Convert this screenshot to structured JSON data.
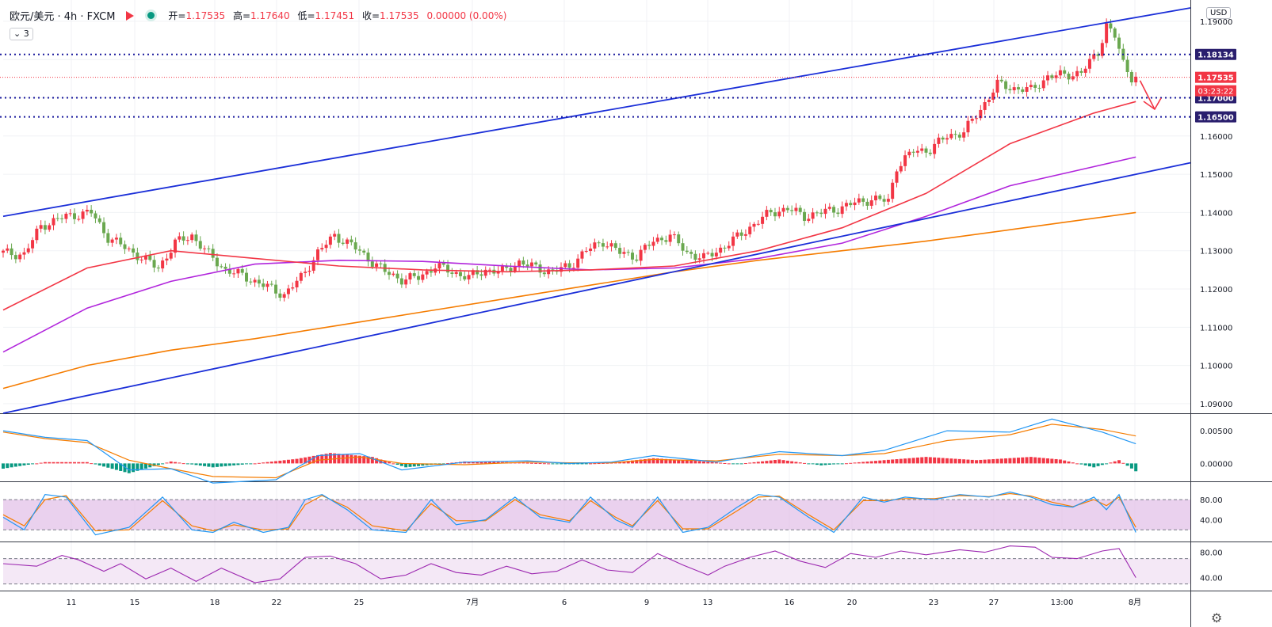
{
  "header": {
    "title": "欧元/美元 · 4h · FXCM",
    "ohlc": [
      {
        "label": "开=",
        "value": "1.17535"
      },
      {
        "label": "高=",
        "value": "1.17640"
      },
      {
        "label": "低=",
        "value": "1.17451"
      },
      {
        "label": "收=",
        "value": "1.17535"
      },
      {
        "label": "",
        "value": "0.00000 (0.00%)"
      }
    ],
    "indicator_count": "3",
    "currency": "USD"
  },
  "colors": {
    "up": "#f23645",
    "down": "#6aa84f",
    "channel": "#1b2fd8",
    "ma_fast": "#f23645",
    "ma_mid": "#b125dc",
    "ma_slow": "#f57c00",
    "level_line": "#1a1a9e",
    "macd_fast": "#2196f3",
    "macd_slow": "#f57c00",
    "hist_pos": "#f23645",
    "hist_neg": "#089981",
    "stoch_band": "#e1bee7",
    "rsi_line": "#9c27b0"
  },
  "chart_data": {
    "type": "candlestick",
    "x_tick_labels": [
      "11",
      "15",
      "18",
      "22",
      "25",
      "7月",
      "6",
      "9",
      "13",
      "16",
      "20",
      "23",
      "27",
      "13:00",
      "8月"
    ],
    "y_tick_labels": [
      "1.19000",
      "1.18000",
      "1.17000",
      "1.16000",
      "1.15000",
      "1.14000",
      "1.13000",
      "1.12000",
      "1.11000",
      "1.10000",
      "1.09000"
    ],
    "ylim": [
      1.0875,
      1.1935
    ],
    "anchors": [
      [
        0,
        1.1295
      ],
      [
        6,
        1.129
      ],
      [
        10,
        1.1365
      ],
      [
        16,
        1.139
      ],
      [
        22,
        1.14
      ],
      [
        26,
        1.1335
      ],
      [
        32,
        1.1295
      ],
      [
        38,
        1.1255
      ],
      [
        42,
        1.132
      ],
      [
        46,
        1.134
      ],
      [
        50,
        1.129
      ],
      [
        54,
        1.125
      ],
      [
        58,
        1.1235
      ],
      [
        62,
        1.1215
      ],
      [
        68,
        1.1185
      ],
      [
        72,
        1.123
      ],
      [
        76,
        1.1295
      ],
      [
        80,
        1.134
      ],
      [
        84,
        1.1315
      ],
      [
        88,
        1.128
      ],
      [
        92,
        1.1245
      ],
      [
        96,
        1.1225
      ],
      [
        100,
        1.123
      ],
      [
        104,
        1.126
      ],
      [
        108,
        1.1245
      ],
      [
        112,
        1.123
      ],
      [
        116,
        1.125
      ],
      [
        120,
        1.1245
      ],
      [
        124,
        1.127
      ],
      [
        128,
        1.1255
      ],
      [
        132,
        1.1245
      ],
      [
        136,
        1.126
      ],
      [
        140,
        1.13
      ],
      [
        144,
        1.1325
      ],
      [
        148,
        1.1295
      ],
      [
        152,
        1.1285
      ],
      [
        156,
        1.1325
      ],
      [
        160,
        1.134
      ],
      [
        164,
        1.1295
      ],
      [
        168,
        1.128
      ],
      [
        172,
        1.1305
      ],
      [
        176,
        1.1335
      ],
      [
        180,
        1.137
      ],
      [
        184,
        1.14
      ],
      [
        188,
        1.141
      ],
      [
        192,
        1.139
      ],
      [
        196,
        1.14
      ],
      [
        200,
        1.141
      ],
      [
        204,
        1.1425
      ],
      [
        208,
        1.1435
      ],
      [
        212,
        1.143
      ],
      [
        214,
        1.152
      ],
      [
        218,
        1.156
      ],
      [
        222,
        1.1565
      ],
      [
        226,
        1.16
      ],
      [
        230,
        1.161
      ],
      [
        234,
        1.167
      ],
      [
        238,
        1.1735
      ],
      [
        242,
        1.1725
      ],
      [
        246,
        1.172
      ],
      [
        250,
        1.1755
      ],
      [
        254,
        1.176
      ],
      [
        258,
        1.1765
      ],
      [
        262,
        1.182
      ],
      [
        264,
        1.189
      ],
      [
        266,
        1.186
      ],
      [
        268,
        1.179
      ],
      [
        270,
        1.1755
      ]
    ],
    "ma_fast": [
      [
        0,
        1.1145
      ],
      [
        20,
        1.1255
      ],
      [
        40,
        1.13
      ],
      [
        60,
        1.128
      ],
      [
        80,
        1.126
      ],
      [
        100,
        1.125
      ],
      [
        120,
        1.1245
      ],
      [
        140,
        1.125
      ],
      [
        160,
        1.126
      ],
      [
        180,
        1.13
      ],
      [
        200,
        1.136
      ],
      [
        220,
        1.145
      ],
      [
        240,
        1.158
      ],
      [
        260,
        1.166
      ],
      [
        270,
        1.169
      ]
    ],
    "ma_mid": [
      [
        0,
        1.1035
      ],
      [
        20,
        1.115
      ],
      [
        40,
        1.122
      ],
      [
        60,
        1.1265
      ],
      [
        80,
        1.1275
      ],
      [
        100,
        1.1272
      ],
      [
        120,
        1.126
      ],
      [
        140,
        1.125
      ],
      [
        160,
        1.1255
      ],
      [
        180,
        1.128
      ],
      [
        200,
        1.132
      ],
      [
        220,
        1.139
      ],
      [
        240,
        1.147
      ],
      [
        260,
        1.152
      ],
      [
        270,
        1.1545
      ]
    ],
    "ma_slow": [
      [
        0,
        1.094
      ],
      [
        20,
        1.1
      ],
      [
        40,
        1.104
      ],
      [
        60,
        1.107
      ],
      [
        80,
        1.1105
      ],
      [
        100,
        1.114
      ],
      [
        120,
        1.1175
      ],
      [
        140,
        1.121
      ],
      [
        160,
        1.1245
      ],
      [
        180,
        1.1275
      ],
      [
        200,
        1.13
      ],
      [
        220,
        1.1325
      ],
      [
        240,
        1.1355
      ],
      [
        260,
        1.1385
      ],
      [
        270,
        1.14
      ]
    ],
    "channel_upper": [
      [
        0,
        1.139
      ],
      [
        283,
        1.1935
      ]
    ],
    "channel_lower": [
      [
        0,
        1.0875
      ],
      [
        283,
        1.153
      ]
    ],
    "levels": [
      {
        "price": 1.18134,
        "label": "1.18134",
        "style": "dotted"
      },
      {
        "price": 1.17,
        "label": "1.17000",
        "style": "dotted"
      },
      {
        "price": 1.165,
        "label": "1.16500",
        "style": "dotted"
      }
    ],
    "current": {
      "price": 1.17535,
      "label": "1.17535",
      "countdown": "03:23:22"
    },
    "arrow": [
      [
        271,
        1.1745
      ],
      [
        276,
        1.167
      ]
    ],
    "macd": {
      "y_tick_labels": [
        "0.00500",
        "0.00000"
      ],
      "ylim": [
        -0.0025,
        0.0072
      ],
      "fast": [
        [
          0,
          0.005
        ],
        [
          10,
          0.004
        ],
        [
          20,
          0.0035
        ],
        [
          30,
          -0.001
        ],
        [
          40,
          -0.0008
        ],
        [
          50,
          -0.003
        ],
        [
          65,
          -0.0025
        ],
        [
          75,
          0.0012
        ],
        [
          85,
          0.0015
        ],
        [
          95,
          -0.001
        ],
        [
          110,
          0.0002
        ],
        [
          125,
          0.0004
        ],
        [
          135,
          0.0
        ],
        [
          145,
          0.0002
        ],
        [
          155,
          0.0012
        ],
        [
          170,
          0.0002
        ],
        [
          185,
          0.0018
        ],
        [
          200,
          0.0012
        ],
        [
          210,
          0.002
        ],
        [
          225,
          0.005
        ],
        [
          240,
          0.0048
        ],
        [
          250,
          0.0068
        ],
        [
          262,
          0.0048
        ],
        [
          270,
          0.003
        ]
      ],
      "slow": [
        [
          0,
          0.0048
        ],
        [
          10,
          0.0038
        ],
        [
          20,
          0.0032
        ],
        [
          30,
          0.0005
        ],
        [
          40,
          -0.0008
        ],
        [
          50,
          -0.002
        ],
        [
          65,
          -0.0022
        ],
        [
          75,
          0.0005
        ],
        [
          85,
          0.001
        ],
        [
          95,
          0.0
        ],
        [
          110,
          -0.0002
        ],
        [
          125,
          0.0002
        ],
        [
          135,
          0.0001
        ],
        [
          145,
          0.0001
        ],
        [
          155,
          0.0006
        ],
        [
          170,
          0.0004
        ],
        [
          185,
          0.0014
        ],
        [
          200,
          0.0012
        ],
        [
          210,
          0.0015
        ],
        [
          225,
          0.0035
        ],
        [
          240,
          0.0044
        ],
        [
          250,
          0.006
        ],
        [
          262,
          0.0052
        ],
        [
          270,
          0.0042
        ]
      ],
      "hist": [
        [
          0,
          -0.0008
        ],
        [
          10,
          0.0002
        ],
        [
          20,
          0.0002
        ],
        [
          30,
          -0.0015
        ],
        [
          40,
          0.0003
        ],
        [
          50,
          -0.0006
        ],
        [
          60,
          0.0
        ],
        [
          70,
          0.0007
        ],
        [
          78,
          0.0016
        ],
        [
          88,
          0.001
        ],
        [
          96,
          -0.0006
        ],
        [
          110,
          0.0003
        ],
        [
          120,
          0.0002
        ],
        [
          135,
          -0.0001
        ],
        [
          145,
          0.0001
        ],
        [
          155,
          0.0008
        ],
        [
          165,
          0.0004
        ],
        [
          175,
          -0.0001
        ],
        [
          185,
          0.0006
        ],
        [
          195,
          -0.0003
        ],
        [
          210,
          0.0005
        ],
        [
          220,
          0.001
        ],
        [
          232,
          0.0005
        ],
        [
          245,
          0.001
        ],
        [
          252,
          0.0006
        ],
        [
          260,
          -0.0006
        ],
        [
          266,
          0.0005
        ],
        [
          270,
          -0.0012
        ]
      ]
    },
    "stoch": {
      "y_tick_labels": [
        "80.00",
        "40.00"
      ],
      "ylim": [
        0,
        110
      ],
      "upper": 80,
      "lower": 20,
      "k": [
        [
          0,
          45
        ],
        [
          5,
          20
        ],
        [
          10,
          90
        ],
        [
          15,
          85
        ],
        [
          22,
          10
        ],
        [
          30,
          25
        ],
        [
          38,
          85
        ],
        [
          45,
          20
        ],
        [
          50,
          15
        ],
        [
          55,
          35
        ],
        [
          62,
          15
        ],
        [
          68,
          25
        ],
        [
          72,
          80
        ],
        [
          76,
          90
        ],
        [
          82,
          60
        ],
        [
          88,
          20
        ],
        [
          96,
          15
        ],
        [
          102,
          80
        ],
        [
          108,
          30
        ],
        [
          115,
          40
        ],
        [
          122,
          85
        ],
        [
          128,
          45
        ],
        [
          135,
          35
        ],
        [
          140,
          85
        ],
        [
          146,
          40
        ],
        [
          150,
          25
        ],
        [
          156,
          85
        ],
        [
          162,
          15
        ],
        [
          168,
          25
        ],
        [
          175,
          65
        ],
        [
          180,
          90
        ],
        [
          185,
          85
        ],
        [
          192,
          45
        ],
        [
          198,
          15
        ],
        [
          205,
          85
        ],
        [
          210,
          75
        ],
        [
          215,
          85
        ],
        [
          222,
          80
        ],
        [
          228,
          90
        ],
        [
          235,
          85
        ],
        [
          240,
          95
        ],
        [
          245,
          85
        ],
        [
          250,
          70
        ],
        [
          255,
          65
        ],
        [
          260,
          85
        ],
        [
          263,
          60
        ],
        [
          266,
          90
        ],
        [
          270,
          15
        ]
      ],
      "d": [
        [
          0,
          50
        ],
        [
          5,
          28
        ],
        [
          10,
          80
        ],
        [
          15,
          88
        ],
        [
          22,
          18
        ],
        [
          30,
          20
        ],
        [
          38,
          78
        ],
        [
          45,
          28
        ],
        [
          50,
          18
        ],
        [
          55,
          30
        ],
        [
          62,
          20
        ],
        [
          68,
          22
        ],
        [
          72,
          70
        ],
        [
          76,
          88
        ],
        [
          82,
          65
        ],
        [
          88,
          28
        ],
        [
          96,
          18
        ],
        [
          102,
          72
        ],
        [
          108,
          38
        ],
        [
          115,
          38
        ],
        [
          122,
          80
        ],
        [
          128,
          50
        ],
        [
          135,
          38
        ],
        [
          140,
          78
        ],
        [
          146,
          45
        ],
        [
          150,
          28
        ],
        [
          156,
          78
        ],
        [
          162,
          22
        ],
        [
          168,
          22
        ],
        [
          175,
          58
        ],
        [
          180,
          85
        ],
        [
          185,
          87
        ],
        [
          192,
          50
        ],
        [
          198,
          20
        ],
        [
          205,
          78
        ],
        [
          210,
          78
        ],
        [
          215,
          82
        ],
        [
          222,
          82
        ],
        [
          228,
          88
        ],
        [
          235,
          86
        ],
        [
          240,
          92
        ],
        [
          245,
          87
        ],
        [
          250,
          75
        ],
        [
          255,
          66
        ],
        [
          260,
          80
        ],
        [
          263,
          68
        ],
        [
          266,
          85
        ],
        [
          270,
          25
        ]
      ]
    },
    "rsi": {
      "y_tick_labels": [
        "80.00",
        "40.00"
      ],
      "ylim": [
        22,
        92
      ],
      "upper": 70,
      "lower": 30,
      "values": [
        [
          0,
          62
        ],
        [
          8,
          58
        ],
        [
          14,
          75
        ],
        [
          18,
          68
        ],
        [
          24,
          50
        ],
        [
          28,
          62
        ],
        [
          34,
          38
        ],
        [
          40,
          55
        ],
        [
          46,
          34
        ],
        [
          52,
          55
        ],
        [
          60,
          32
        ],
        [
          66,
          38
        ],
        [
          72,
          72
        ],
        [
          78,
          74
        ],
        [
          84,
          62
        ],
        [
          90,
          38
        ],
        [
          96,
          44
        ],
        [
          102,
          62
        ],
        [
          108,
          48
        ],
        [
          114,
          44
        ],
        [
          120,
          58
        ],
        [
          126,
          46
        ],
        [
          132,
          50
        ],
        [
          138,
          68
        ],
        [
          144,
          52
        ],
        [
          150,
          48
        ],
        [
          156,
          78
        ],
        [
          162,
          60
        ],
        [
          168,
          44
        ],
        [
          172,
          58
        ],
        [
          178,
          72
        ],
        [
          184,
          82
        ],
        [
          190,
          66
        ],
        [
          196,
          56
        ],
        [
          202,
          78
        ],
        [
          208,
          72
        ],
        [
          214,
          82
        ],
        [
          220,
          76
        ],
        [
          228,
          84
        ],
        [
          234,
          80
        ],
        [
          240,
          90
        ],
        [
          246,
          88
        ],
        [
          250,
          72
        ],
        [
          256,
          70
        ],
        [
          262,
          82
        ],
        [
          266,
          86
        ],
        [
          270,
          40
        ]
      ]
    }
  }
}
